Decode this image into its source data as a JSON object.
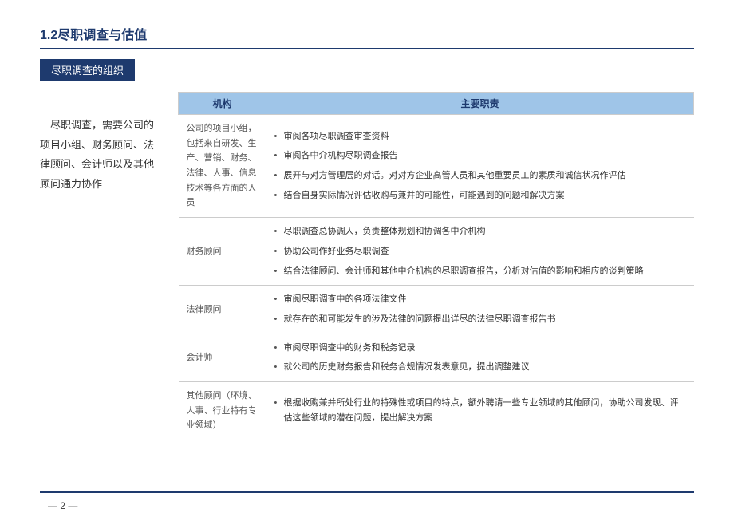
{
  "colors": {
    "brand_navy": "#1e3a6e",
    "header_fill": "#9fc5e8",
    "border_gray": "#cccccc",
    "text_body": "#333333",
    "text_muted": "#555555",
    "background": "#ffffff"
  },
  "section_title": "1.2尽职调查与估值",
  "subsection_label": "尽职调查的组织",
  "intro_text": "　尽职调查，需要公司的项目小组、财务顾问、法律顾问、会计师以及其他顾问通力协作",
  "table": {
    "headers": {
      "org": "机构",
      "duty": "主要职责"
    },
    "rows": [
      {
        "org": "公司的项目小组，包括来自研发、生产、营销、财务、法律、人事、信息技术等各方面的人员",
        "duties": [
          "审阅各项尽职调查审查资料",
          "审阅各中介机构尽职调查报告",
          "展开与对方管理层的对话。对对方企业高管人员和其他重要员工的素质和诚信状况作评估",
          "结合自身实际情况评估收购与兼并的可能性，可能遇到的问题和解决方案"
        ]
      },
      {
        "org": "财务顾问",
        "duties": [
          "尽职调查总协调人，负责整体规划和协调各中介机构",
          "协助公司作好业务尽职调查",
          "结合法律顾问、会计师和其他中介机构的尽职调查报告，分析对估值的影响和相应的谈判策略"
        ]
      },
      {
        "org": "法律顾问",
        "duties": [
          "审阅尽职调查中的各项法律文件",
          "就存在的和可能发生的涉及法律的问题提出详尽的法律尽职调查报告书"
        ]
      },
      {
        "org": "会计师",
        "duties": [
          "审阅尽职调查中的财务和税务记录",
          "就公司的历史财务报告和税务合规情况发表意见，提出调整建议"
        ]
      },
      {
        "org": "其他顾问（环境、人事、行业特有专业领域）",
        "duties": [
          "根据收购兼并所处行业的特殊性或项目的特点，额外聘请一些专业领域的其他顾问，协助公司发现、评估这些领域的潜在问题，提出解决方案"
        ]
      }
    ]
  },
  "page_number": "—  2  —"
}
